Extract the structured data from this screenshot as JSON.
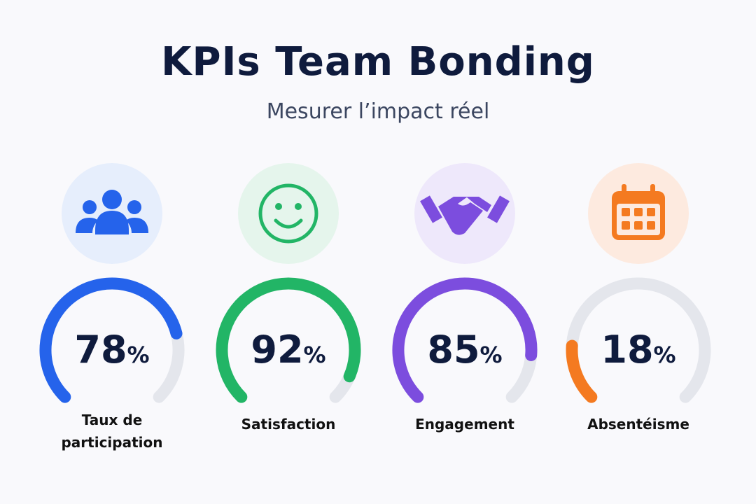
{
  "header": {
    "title": "KPIs Team Bonding",
    "subtitle": "Mesurer l’impact réel"
  },
  "chart_data": [
    {
      "type": "gauge",
      "categories": [
        "Taux de participation"
      ],
      "values": [
        78
      ],
      "value_labels": [
        "78%"
      ],
      "color": "#2563eb",
      "ylim": [
        0,
        100
      ]
    },
    {
      "type": "gauge",
      "categories": [
        "Satisfaction"
      ],
      "values": [
        92
      ],
      "value_labels": [
        "92%"
      ],
      "color": "#22b566",
      "ylim": [
        0,
        100
      ]
    },
    {
      "type": "gauge",
      "categories": [
        "Engagement"
      ],
      "values": [
        85
      ],
      "value_labels": [
        "85%"
      ],
      "color": "#7c4dde",
      "ylim": [
        0,
        100
      ]
    },
    {
      "type": "gauge",
      "categories": [
        "Absentéisme"
      ],
      "values": [
        18
      ],
      "value_labels": [
        "18%"
      ],
      "color": "#f47a20",
      "ylim": [
        0,
        100
      ]
    }
  ]
}
